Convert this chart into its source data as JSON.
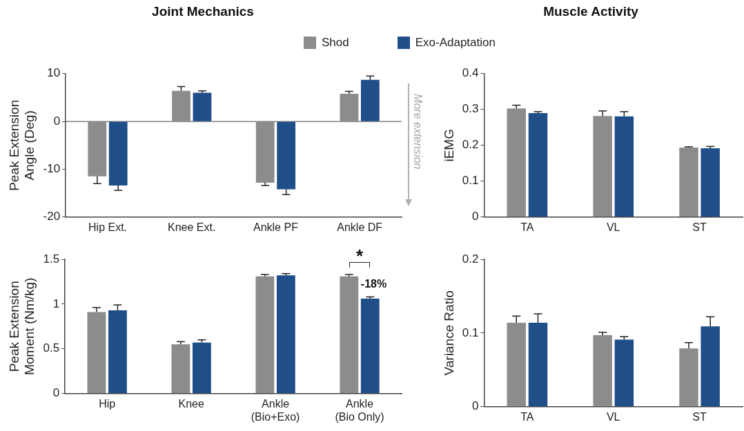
{
  "chart_data": [
    {
      "type": "bar",
      "title": "Joint Mechanics",
      "ylabel": "Peak Extension\nAngle (Deg)",
      "categories": [
        "Hip Ext.",
        "Knee Ext.",
        "Ankle PF",
        "Ankle DF"
      ],
      "series": [
        {
          "name": "Shod",
          "color": "#8c8c8c",
          "values": [
            -11.5,
            6.4,
            -12.8,
            5.8
          ],
          "errors": [
            [
              -13.0,
              -11.5
            ],
            [
              6.4,
              7.3
            ],
            [
              -13.4,
              -12.8
            ],
            [
              5.8,
              6.3
            ]
          ]
        },
        {
          "name": "Exo-Adaptation",
          "color": "#1f4e89",
          "values": [
            -13.4,
            6.0,
            -14.2,
            8.7
          ],
          "errors": [
            [
              -14.4,
              -13.4
            ],
            [
              6.0,
              6.4
            ],
            [
              -15.3,
              -14.2
            ],
            [
              8.7,
              9.5
            ]
          ]
        }
      ],
      "ylim": [
        -20,
        10
      ],
      "yticks": [
        -20,
        -10,
        0,
        10
      ],
      "ref_lines": [
        {
          "axis": "y",
          "value": 0,
          "color": "#808080"
        }
      ],
      "annotations": [
        "More extension"
      ],
      "legend": "top right",
      "grid": false
    },
    {
      "type": "bar",
      "title": "Muscle Activity",
      "ylabel": "iEMG",
      "categories": [
        "TA",
        "VL",
        "ST"
      ],
      "series": [
        {
          "color": "#8c8c8c",
          "values": [
            0.303,
            0.282,
            0.194
          ],
          "errors": [
            [
              0.303,
              0.312
            ],
            [
              0.282,
              0.296
            ],
            [
              0.194,
              0.196
            ]
          ]
        },
        {
          "color": "#1f4e89",
          "values": [
            0.29,
            0.281,
            0.192
          ],
          "errors": [
            [
              0.29,
              0.294
            ],
            [
              0.281,
              0.294
            ],
            [
              0.192,
              0.197
            ]
          ]
        }
      ],
      "ylim": [
        0,
        0.4
      ],
      "yticks": [
        0,
        0.1,
        0.2,
        0.3,
        0.4
      ],
      "grid": false
    },
    {
      "type": "bar",
      "ylabel": "Peak Extension\nMoment (Nm/kg)",
      "categories": [
        "Hip",
        "Knee",
        "Ankle\n(Bio+Exo)",
        "Ankle\n(Bio Only)"
      ],
      "series": [
        {
          "color": "#8c8c8c",
          "values": [
            0.91,
            0.55,
            1.31,
            1.31
          ],
          "errors": [
            [
              0.91,
              0.96
            ],
            [
              0.55,
              0.58
            ],
            [
              1.31,
              1.33
            ],
            [
              1.31,
              1.33
            ]
          ]
        },
        {
          "color": "#1f4e89",
          "values": [
            0.93,
            0.57,
            1.32,
            1.06
          ],
          "errors": [
            [
              0.93,
              0.99
            ],
            [
              0.57,
              0.6
            ],
            [
              1.32,
              1.34
            ],
            [
              1.06,
              1.08
            ]
          ]
        }
      ],
      "ylim": [
        0,
        1.5
      ],
      "yticks": [
        0,
        0.5,
        1,
        1.5
      ],
      "annotations": [
        "*",
        {
          "text": "-18%",
          "x": "Ankle\n(Bio Only)",
          "y": 1.22
        }
      ],
      "grid": false
    },
    {
      "type": "bar",
      "ylabel": "Variance Ratio",
      "categories": [
        "TA",
        "VL",
        "ST"
      ],
      "series": [
        {
          "color": "#8c8c8c",
          "values": [
            0.114,
            0.097,
            0.079
          ],
          "errors": [
            [
              0.114,
              0.123
            ],
            [
              0.097,
              0.101
            ],
            [
              0.079,
              0.087
            ]
          ]
        },
        {
          "color": "#1f4e89",
          "values": [
            0.114,
            0.091,
            0.109
          ],
          "errors": [
            [
              0.114,
              0.126
            ],
            [
              0.091,
              0.095
            ],
            [
              0.109,
              0.122
            ]
          ]
        }
      ],
      "ylim": [
        0,
        0.2
      ],
      "yticks": [
        0,
        0.1,
        0.2
      ],
      "grid": false
    }
  ]
}
